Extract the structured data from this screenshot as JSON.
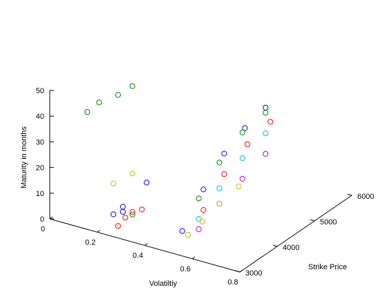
{
  "chart_data": {
    "type": "scatter",
    "title": "",
    "xlabel": "Volatiltiy",
    "ylabel": "Strike Price",
    "zlabel": "Maturity in months",
    "xlim": [
      0,
      0.8
    ],
    "ylim": [
      3000,
      6000
    ],
    "zlim": [
      0,
      50
    ],
    "xticks": [
      "0",
      "0.2",
      "0.4",
      "0.6",
      "0.8"
    ],
    "yticks": [
      "3000",
      "4000",
      "5000",
      "6000"
    ],
    "zticks": [
      "0",
      "10",
      "20",
      "30",
      "40",
      "50"
    ],
    "marker": "open circle",
    "grid": false,
    "series": [
      {
        "color": "#0000ff",
        "x": [
          0.55,
          0.3,
          0.3,
          0.26,
          0.4,
          0.6,
          0.64,
          0.68,
          0.72
        ],
        "y": [
          3050,
          3050,
          3050,
          3050,
          3050,
          3300,
          3600,
          3900,
          4200
        ],
        "z": [
          9,
          12,
          10,
          8,
          24,
          24,
          36,
          44,
          50
        ]
      },
      {
        "color": "#008000",
        "x": [
          0.15,
          0.2,
          0.28,
          0.34,
          0.34,
          0.58,
          0.62,
          0.67,
          0.72
        ],
        "y": [
          3050,
          3050,
          3050,
          3050,
          3050,
          3300,
          3600,
          3900,
          4200
        ],
        "z": [
          45,
          50,
          55,
          60,
          10,
          20,
          32,
          42,
          48
        ]
      },
      {
        "color": "#ff0000",
        "x": [
          0.28,
          0.31,
          0.34,
          0.38,
          0.6,
          0.64,
          0.69,
          0.74
        ],
        "y": [
          3050,
          3050,
          3050,
          3050,
          3300,
          3600,
          3900,
          4200
        ],
        "z": [
          4,
          8,
          11,
          13,
          16,
          28,
          38,
          45
        ]
      },
      {
        "color": "#00bfbf",
        "x": [
          0.58,
          0.62,
          0.67,
          0.72
        ],
        "y": [
          3300,
          3600,
          3900,
          4200
        ],
        "z": [
          12,
          22,
          32,
          40
        ]
      },
      {
        "color": "#bf00bf",
        "x": [
          0.58,
          0.62,
          0.67,
          0.72
        ],
        "y": [
          3300,
          3600,
          3900,
          4200
        ],
        "z": [
          8,
          16,
          24,
          32
        ]
      },
      {
        "color": "#bfbf00",
        "x": [
          0.26,
          0.34,
          0.55,
          0.58,
          0.62,
          0.67
        ],
        "y": [
          3050,
          3050,
          3200,
          3400,
          3600,
          3800
        ],
        "z": [
          20,
          26,
          6,
          10,
          16,
          22
        ]
      }
    ]
  }
}
